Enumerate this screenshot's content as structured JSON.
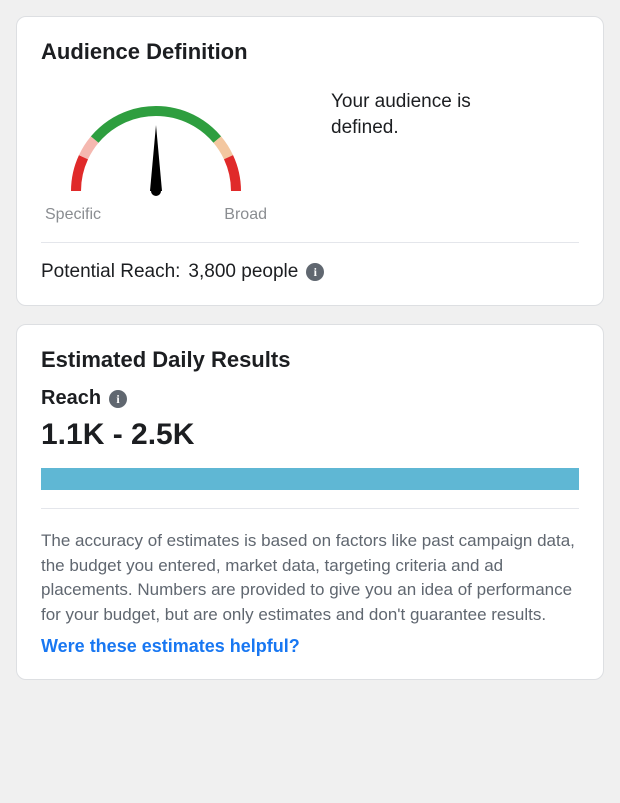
{
  "audience": {
    "title": "Audience Definition",
    "status_text": "Your audience is defined.",
    "label_left": "Specific",
    "label_right": "Broad",
    "gauge": {
      "segments": [
        {
          "color": "#e02a2a",
          "start_deg": -180,
          "end_deg": -155
        },
        {
          "color": "#f5b8b0",
          "start_deg": -155,
          "end_deg": -140
        },
        {
          "color": "#2e9e3f",
          "start_deg": -140,
          "end_deg": -40
        },
        {
          "color": "#f3c7a0",
          "start_deg": -40,
          "end_deg": -25
        },
        {
          "color": "#e02a2a",
          "start_deg": -25,
          "end_deg": 0
        }
      ],
      "needle_deg": -90,
      "stroke_width": 10
    },
    "reach_label": "Potential Reach:",
    "reach_value": "3,800 people"
  },
  "results": {
    "title": "Estimated Daily Results",
    "metric_label": "Reach",
    "range": "1.1K - 2.5K",
    "bar_fill_pct": 100,
    "bar_fill_color": "#5fb7d4",
    "disclaimer": "The accuracy of estimates is based on factors like past campaign data, the budget you entered, market data, targeting criteria and ad placements. Numbers are provided to give you an idea of performance of your budget, but are only estimates and don't guarantee results.",
    "disclaimer_full": "The accuracy of estimates is based on factors like past campaign data, the budget you entered, market data, targeting criteria and ad placements. Numbers are provided to give you an idea of performance for your budget, but are only estimates and don't guarantee results.",
    "feedback_link": "Were these estimates helpful?"
  }
}
